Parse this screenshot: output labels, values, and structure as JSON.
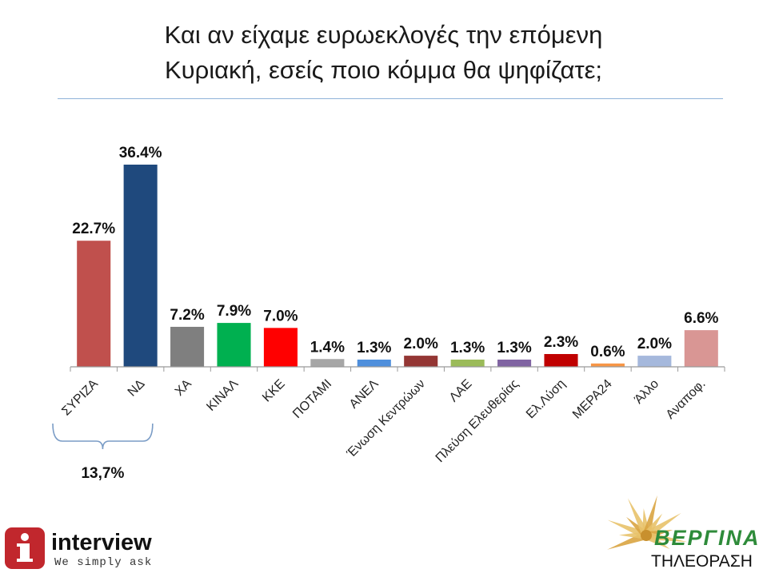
{
  "title_lines": [
    "Και αν είχαμε ευρωεκλογές την επόμενη",
    "Κυριακή, εσείς ποιο κόμμα θα ψηφίζατε;"
  ],
  "chart_data": {
    "type": "bar",
    "categories": [
      "ΣΥΡΙΖΑ",
      "ΝΔ",
      "ΧΑ",
      "ΚΙΝΑΛ",
      "ΚΚΕ",
      "ΠΟΤΑΜΙ",
      "ΑΝΕΛ",
      "Ένωση Κεντρώων",
      "ΛΑΕ",
      "Πλεύση Ελευθερίας",
      "Ελ.Λύση",
      "ΜΕΡΑ24",
      "Άλλο",
      "Αναποφ."
    ],
    "values": [
      22.7,
      36.4,
      7.2,
      7.9,
      7.0,
      1.4,
      1.3,
      2.0,
      1.3,
      1.3,
      2.3,
      0.6,
      2.0,
      6.6
    ],
    "value_labels": [
      "22.7%",
      "36.4%",
      "7.2%",
      "7.9%",
      "7.0%",
      "1.4%",
      "1.3%",
      "2.0%",
      "1.3%",
      "1.3%",
      "2.3%",
      "0.6%",
      "2.0%",
      "6.6%"
    ],
    "colors": [
      "#c0504d",
      "#1f497d",
      "#7f7f7f",
      "#00b050",
      "#ff0000",
      "#a6a6a6",
      "#4f8fdc",
      "#943634",
      "#9bbb59",
      "#8064a2",
      "#c00000",
      "#f79646",
      "#a5b8dc",
      "#d99694"
    ],
    "ylim": [
      0,
      40
    ],
    "grid": false,
    "annotation": {
      "text": "13,7%",
      "spans": [
        "ΣΥΡΙΖΑ",
        "ΝΔ"
      ]
    }
  },
  "logos": {
    "left": {
      "name": "interview",
      "tagline": "We simply ask"
    },
    "right": {
      "name": "ΒΕΡΓΙΝΑ",
      "subtitle": "ΤΗΛΕΟΡΑΣΗ"
    }
  }
}
